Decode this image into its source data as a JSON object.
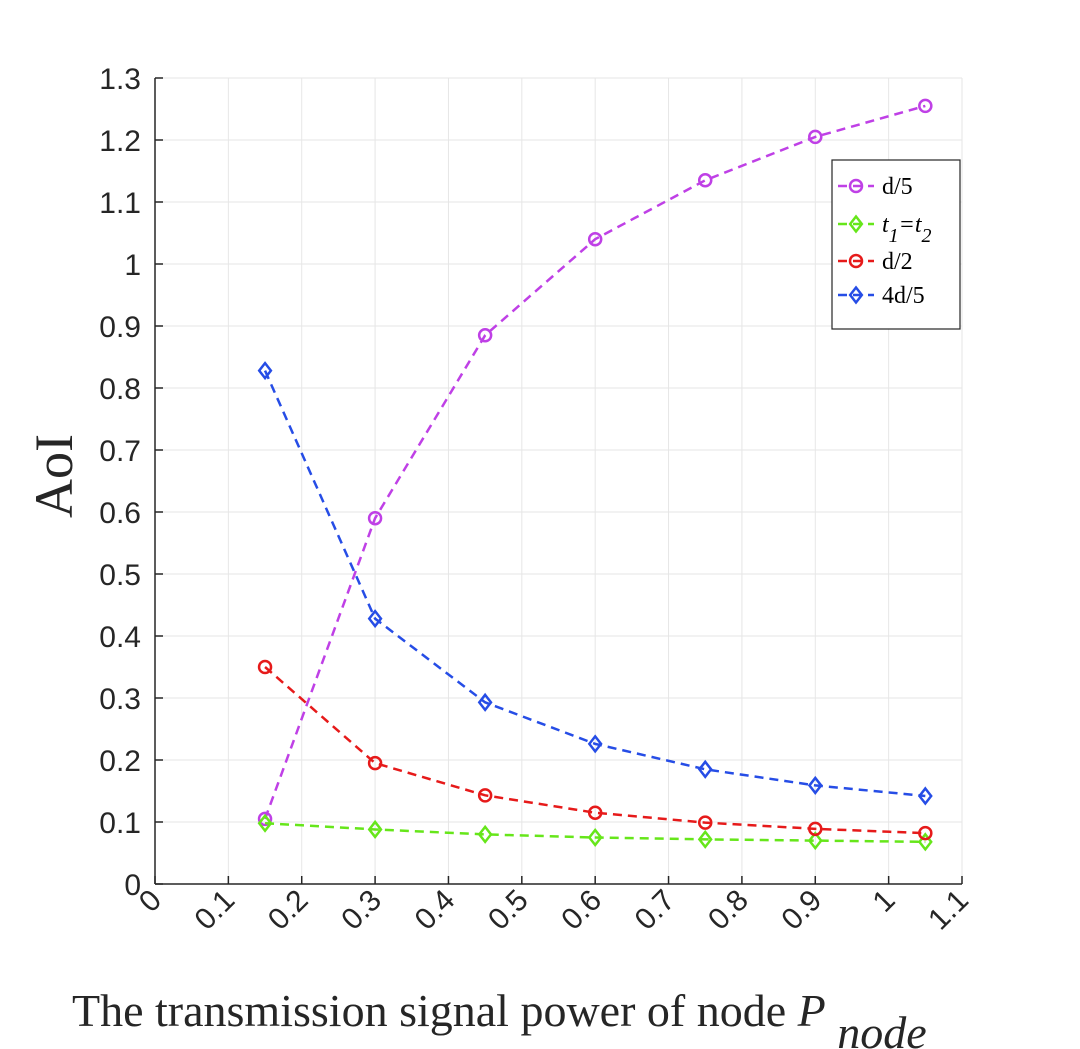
{
  "chart_data": {
    "type": "line",
    "title": "",
    "xlabel": "The transmission signal power of node ",
    "xlabel_symbol": "P",
    "xlabel_subscript": "node",
    "ylabel": "AoI",
    "xlim": [
      0,
      1.1
    ],
    "ylim": [
      0,
      1.3
    ],
    "xticks": [
      0,
      0.1,
      0.2,
      0.3,
      0.4,
      0.5,
      0.6,
      0.7,
      0.8,
      0.9,
      1,
      1.1
    ],
    "xtick_labels": [
      "0",
      "0.1",
      "0.2",
      "0.3",
      "0.4",
      "0.5",
      "0.6",
      "0.7",
      "0.8",
      "0.9",
      "1",
      "1.1"
    ],
    "yticks": [
      0,
      0.1,
      0.2,
      0.3,
      0.4,
      0.5,
      0.6,
      0.7,
      0.8,
      0.9,
      1,
      1.1,
      1.2,
      1.3
    ],
    "ytick_labels": [
      "0",
      "0.1",
      "0.2",
      "0.3",
      "0.4",
      "0.5",
      "0.6",
      "0.7",
      "0.8",
      "0.9",
      "1",
      "1.1",
      "1.2",
      "1.3"
    ],
    "grid": true,
    "legend_position": "top-right",
    "x": [
      0.15,
      0.3,
      0.45,
      0.6,
      0.75,
      0.9,
      1.05
    ],
    "series": [
      {
        "name": "d/5",
        "legend_label": "d/5",
        "color": "#bf40e6",
        "marker": "circle",
        "values": [
          0.105,
          0.59,
          0.885,
          1.04,
          1.135,
          1.205,
          1.255
        ]
      },
      {
        "name": "t1=t2",
        "legend_label": "",
        "legend_parts": [
          "t",
          "1",
          "=t",
          "2"
        ],
        "color": "#66e61a",
        "marker": "diamond",
        "values": [
          0.098,
          0.088,
          0.08,
          0.075,
          0.072,
          0.07,
          0.068
        ]
      },
      {
        "name": "d/2",
        "legend_label": "d/2",
        "color": "#e61a1a",
        "marker": "circle",
        "values": [
          0.35,
          0.195,
          0.143,
          0.115,
          0.099,
          0.089,
          0.082
        ]
      },
      {
        "name": "4d/5",
        "legend_label": "4d/5",
        "color": "#264de6",
        "marker": "diamond",
        "values": [
          0.828,
          0.428,
          0.293,
          0.226,
          0.185,
          0.159,
          0.142
        ]
      }
    ]
  }
}
